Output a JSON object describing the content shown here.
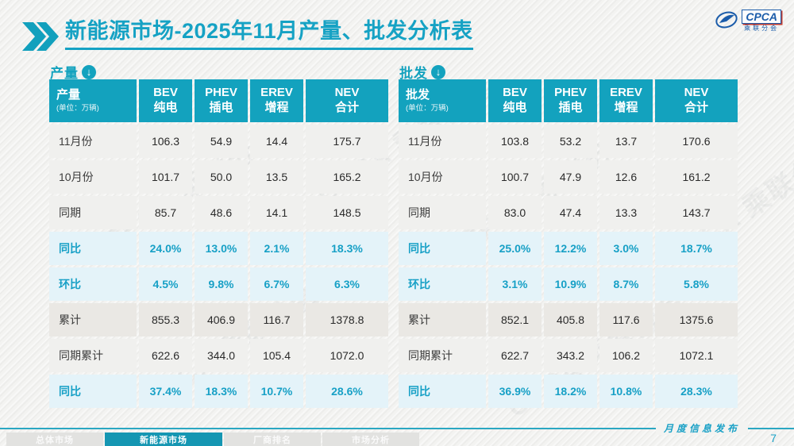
{
  "page": {
    "title": "新能源市场-2025年11月产量、批发分析表",
    "page_number": "7",
    "footer_note": "月度信息发布",
    "watermark_text": "CPCA 乘联分会"
  },
  "logo": {
    "text": "CPCA",
    "subtext": "乘联分会"
  },
  "colors": {
    "accent_teal": "#13a2be",
    "percent_row_bg": "#e4f3f9",
    "cumulative_row_bg": "#eae8e4"
  },
  "tables": [
    {
      "section_label": "产量",
      "section_icon": "down-arrow-circle-icon",
      "header_label": "产量",
      "unit_label": "(单位：万辆)",
      "columns": [
        {
          "en": "BEV",
          "cn": "纯电"
        },
        {
          "en": "PHEV",
          "cn": "插电"
        },
        {
          "en": "EREV",
          "cn": "增程"
        },
        {
          "en": "NEV",
          "cn": "合计"
        }
      ],
      "rows": [
        {
          "label": "11月份",
          "type": "data",
          "values": [
            "106.3",
            "54.9",
            "14.4",
            "175.7"
          ]
        },
        {
          "label": "10月份",
          "type": "data",
          "values": [
            "101.7",
            "50.0",
            "13.5",
            "165.2"
          ]
        },
        {
          "label": "同期",
          "type": "data",
          "values": [
            "85.7",
            "48.6",
            "14.1",
            "148.5"
          ]
        },
        {
          "label": "同比",
          "type": "pct",
          "values": [
            "24.0%",
            "13.0%",
            "2.1%",
            "18.3%"
          ]
        },
        {
          "label": "环比",
          "type": "pct",
          "values": [
            "4.5%",
            "9.8%",
            "6.7%",
            "6.3%"
          ]
        },
        {
          "label": "累计",
          "type": "cum",
          "values": [
            "855.3",
            "406.9",
            "116.7",
            "1378.8"
          ]
        },
        {
          "label": "同期累计",
          "type": "data",
          "values": [
            "622.6",
            "344.0",
            "105.4",
            "1072.0"
          ]
        },
        {
          "label": "同比",
          "type": "pct",
          "values": [
            "37.4%",
            "18.3%",
            "10.7%",
            "28.6%"
          ]
        }
      ]
    },
    {
      "section_label": "批发",
      "section_icon": "down-arrow-circle-icon",
      "header_label": "批发",
      "unit_label": "(单位：万辆)",
      "columns": [
        {
          "en": "BEV",
          "cn": "纯电"
        },
        {
          "en": "PHEV",
          "cn": "插电"
        },
        {
          "en": "EREV",
          "cn": "增程"
        },
        {
          "en": "NEV",
          "cn": "合计"
        }
      ],
      "rows": [
        {
          "label": "11月份",
          "type": "data",
          "values": [
            "103.8",
            "53.2",
            "13.7",
            "170.6"
          ]
        },
        {
          "label": "10月份",
          "type": "data",
          "values": [
            "100.7",
            "47.9",
            "12.6",
            "161.2"
          ]
        },
        {
          "label": "同期",
          "type": "data",
          "values": [
            "83.0",
            "47.4",
            "13.3",
            "143.7"
          ]
        },
        {
          "label": "同比",
          "type": "pct",
          "values": [
            "25.0%",
            "12.2%",
            "3.0%",
            "18.7%"
          ]
        },
        {
          "label": "环比",
          "type": "pct",
          "values": [
            "3.1%",
            "10.9%",
            "8.7%",
            "5.8%"
          ]
        },
        {
          "label": "累计",
          "type": "cum",
          "values": [
            "852.1",
            "405.8",
            "117.6",
            "1375.6"
          ]
        },
        {
          "label": "同期累计",
          "type": "data",
          "values": [
            "622.7",
            "343.2",
            "106.2",
            "1072.1"
          ]
        },
        {
          "label": "同比",
          "type": "pct",
          "values": [
            "36.9%",
            "18.2%",
            "10.8%",
            "28.3%"
          ]
        }
      ]
    }
  ],
  "footer_tabs": [
    {
      "label": "总体市场",
      "active": false
    },
    {
      "label": "新能源市场",
      "active": true
    },
    {
      "label": "厂商排名",
      "active": false
    },
    {
      "label": "市场分析",
      "active": false
    }
  ]
}
